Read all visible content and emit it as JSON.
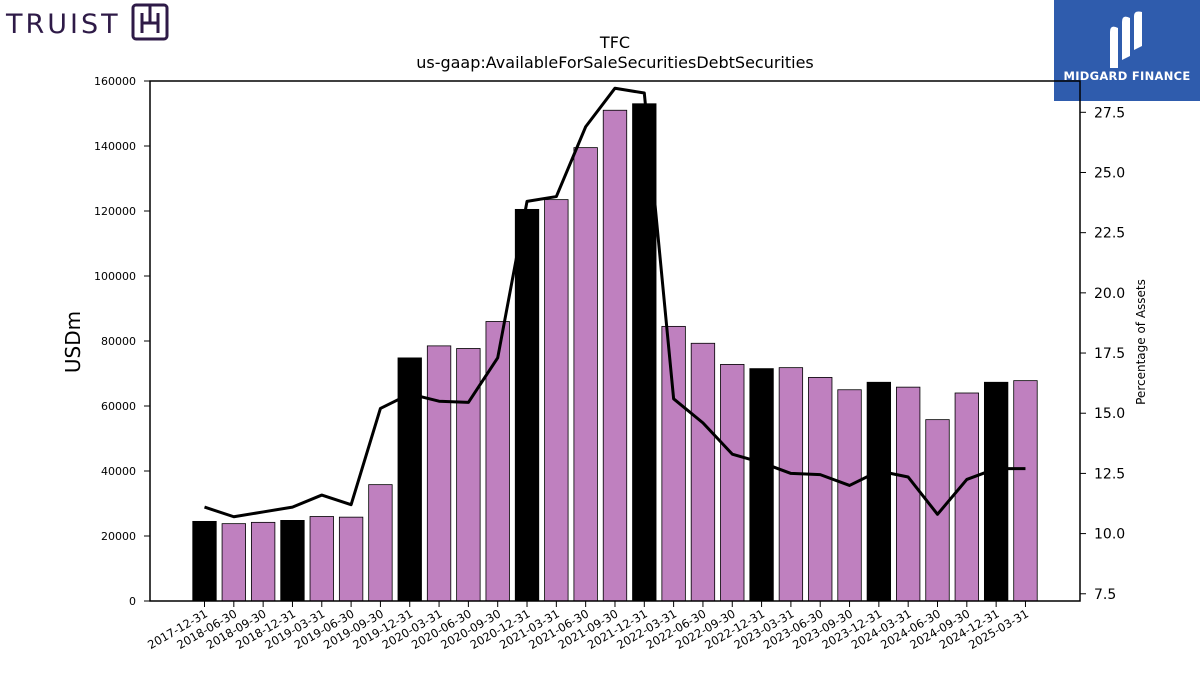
{
  "brand": {
    "left_name": "TRUIST",
    "right_name": "MIDGARD FINANCE"
  },
  "chart_data": {
    "type": "bar",
    "title": "TFC",
    "subtitle": "us-gaap:AvailableForSaleSecuritiesDebtSecurities",
    "ylabel": "USDm",
    "y2label": "Percentage of Assets",
    "ylim": [
      0,
      160000
    ],
    "y2lim": [
      7.2,
      28.8
    ],
    "yticks": [
      0,
      20000,
      40000,
      60000,
      80000,
      100000,
      120000,
      140000,
      160000
    ],
    "y2ticks": [
      "7.5",
      "10.0",
      "12.5",
      "15.0",
      "17.5",
      "20.0",
      "22.5",
      "25.0",
      "27.5"
    ],
    "categories": [
      "2017-12-31",
      "2018-06-30",
      "2018-09-30",
      "2018-12-31",
      "2019-03-31",
      "2019-06-30",
      "2019-09-30",
      "2019-12-31",
      "2020-03-31",
      "2020-06-30",
      "2020-09-30",
      "2020-12-31",
      "2021-03-31",
      "2021-06-30",
      "2021-09-30",
      "2021-12-31",
      "2022-03-31",
      "2022-06-30",
      "2022-09-30",
      "2022-12-31",
      "2023-03-31",
      "2023-06-30",
      "2023-09-30",
      "2023-12-31",
      "2024-03-31",
      "2024-06-30",
      "2024-09-30",
      "2024-12-31",
      "2025-03-31"
    ],
    "series": [
      {
        "type": "bar",
        "values": [
          24500,
          23800,
          24200,
          24800,
          26000,
          25800,
          35800,
          74800,
          78500,
          77700,
          86000,
          120500,
          123500,
          139500,
          151000,
          153000,
          84500,
          79300,
          72800,
          71500,
          71800,
          68800,
          65000,
          67300,
          65800,
          55800,
          64000,
          67300,
          67800
        ],
        "year_end_color": "#000000",
        "quarter_color": "#bf80bf"
      },
      {
        "type": "line",
        "axis": "secondary",
        "color": "#000000",
        "values": [
          11.1,
          10.7,
          10.9,
          11.1,
          11.6,
          11.2,
          15.2,
          15.8,
          15.5,
          15.45,
          17.3,
          23.8,
          24.0,
          26.9,
          28.5,
          28.3,
          15.6,
          14.6,
          13.3,
          12.95,
          12.5,
          12.45,
          12.0,
          12.6,
          12.35,
          10.8,
          12.25,
          12.7,
          12.7
        ]
      }
    ]
  }
}
